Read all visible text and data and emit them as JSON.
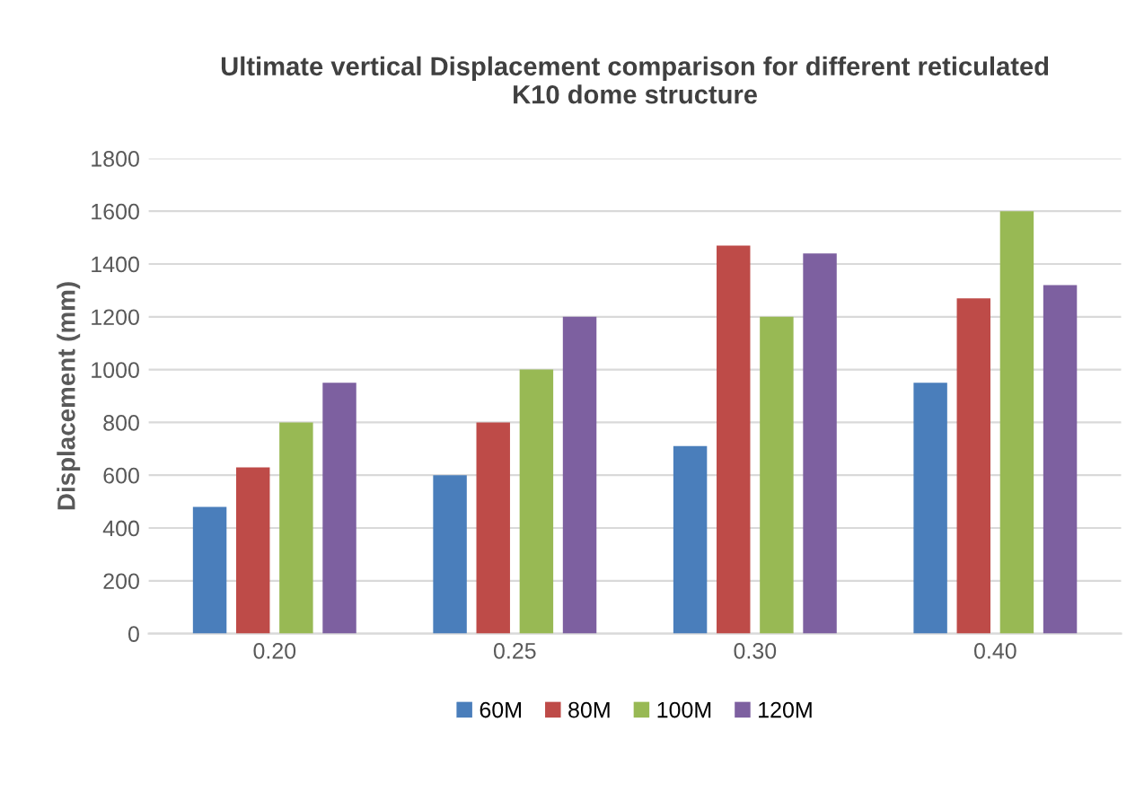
{
  "chart_data": {
    "type": "bar",
    "title": "Ultimate vertical Displacement comparison for different reticulated\nK10 dome structure",
    "ylabel": "Displacement (mm)",
    "categories": [
      "0.20",
      "0.25",
      "0.30",
      "0.40"
    ],
    "series": [
      {
        "name": "60M",
        "color": "#4a7ebb",
        "values": [
          480,
          600,
          710,
          950
        ]
      },
      {
        "name": "80M",
        "color": "#be4b48",
        "values": [
          630,
          800,
          1470,
          1270
        ]
      },
      {
        "name": "100M",
        "color": "#98b954",
        "values": [
          800,
          1000,
          1200,
          1600
        ]
      },
      {
        "name": "120M",
        "color": "#7d60a0",
        "values": [
          950,
          1200,
          1440,
          1320
        ]
      }
    ],
    "ylim": [
      0,
      1800
    ],
    "yticks": [
      0,
      200,
      400,
      600,
      800,
      1000,
      1200,
      1400,
      1600,
      1800
    ],
    "grid": "y",
    "legend": "bottom"
  }
}
